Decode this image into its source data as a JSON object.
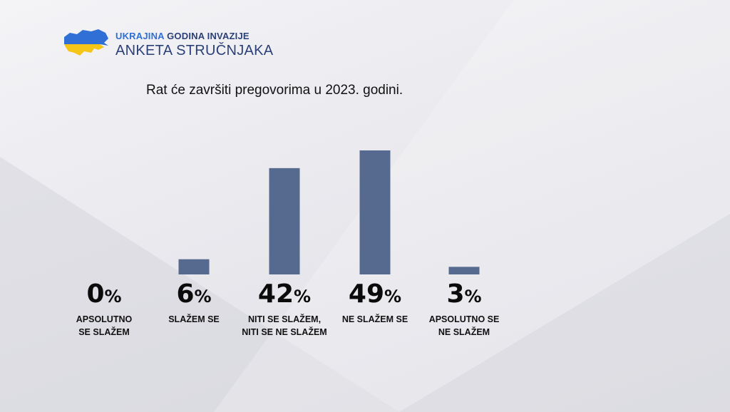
{
  "header": {
    "line1_accent": "UKRAJINA",
    "line1_rest": " GODINA INVAZIJE",
    "line2": "ANKETA STRUČNJAKA",
    "logo_icon": "ukraine-map-icon",
    "colors": {
      "blue": "#2f6fd6",
      "yellow": "#f5c518",
      "navy": "#2b3f78"
    }
  },
  "chart_data": {
    "type": "bar",
    "title": "Rat će završiti pregovorima u 2023. godini.",
    "categories": [
      [
        "APSOLUTNO",
        "SE SLAŽEM"
      ],
      [
        "SLAŽEM SE"
      ],
      [
        "NITI SE SLAŽEM,",
        "NITI SE NE SLAŽEM"
      ],
      [
        "NE SLAŽEM SE"
      ],
      [
        "APSOLUTNO SE",
        "NE SLAŽEM"
      ]
    ],
    "values": [
      0,
      6,
      42,
      49,
      3
    ],
    "unit": "%",
    "bar_color": "#56698e",
    "ylim": [
      0,
      49
    ]
  }
}
